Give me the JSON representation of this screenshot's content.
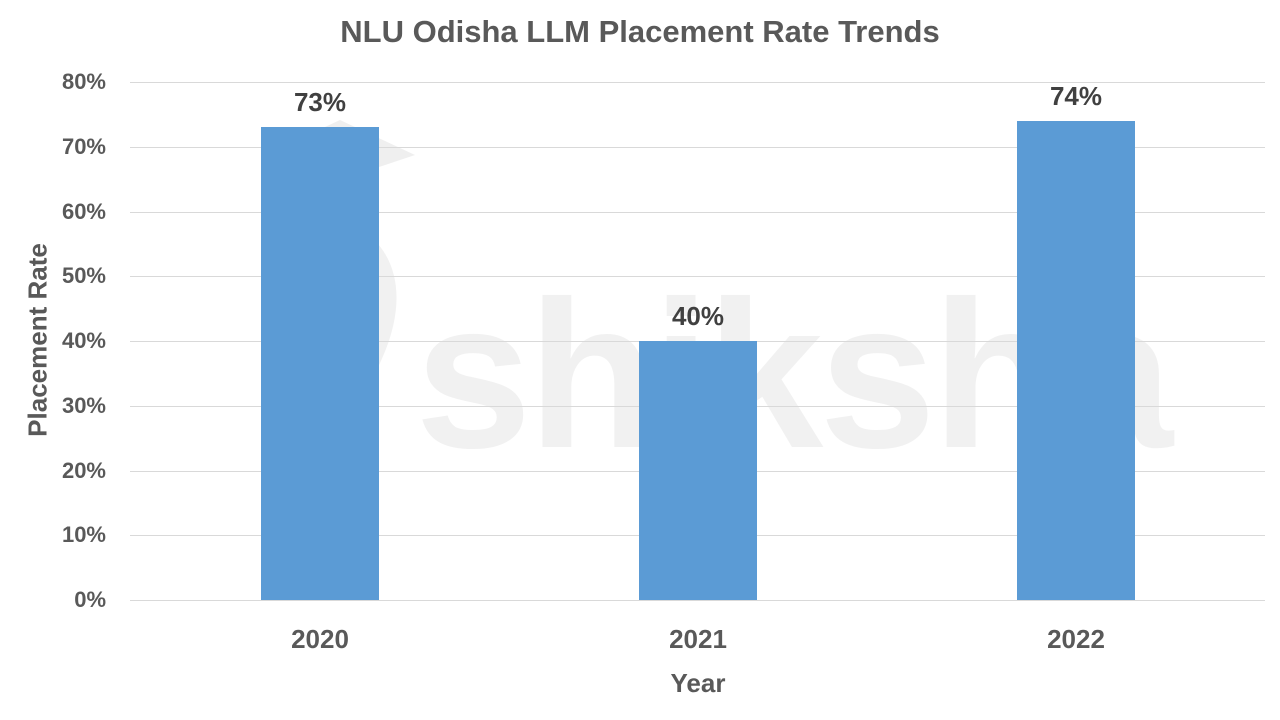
{
  "chart_data": {
    "type": "bar",
    "title": "NLU Odisha LLM Placement Rate Trends",
    "xlabel": "Year",
    "ylabel": "Placement Rate",
    "categories": [
      "2020",
      "2021",
      "2022"
    ],
    "values": [
      73,
      40,
      74
    ],
    "data_labels": [
      "73%",
      "40%",
      "74%"
    ],
    "ylim": [
      0,
      80
    ],
    "yticks": [
      "0%",
      "10%",
      "20%",
      "30%",
      "40%",
      "50%",
      "60%",
      "70%",
      "80%"
    ],
    "grid": true,
    "legend": "none",
    "bar_color": "#5b9bd5"
  },
  "watermark": "shiksha"
}
